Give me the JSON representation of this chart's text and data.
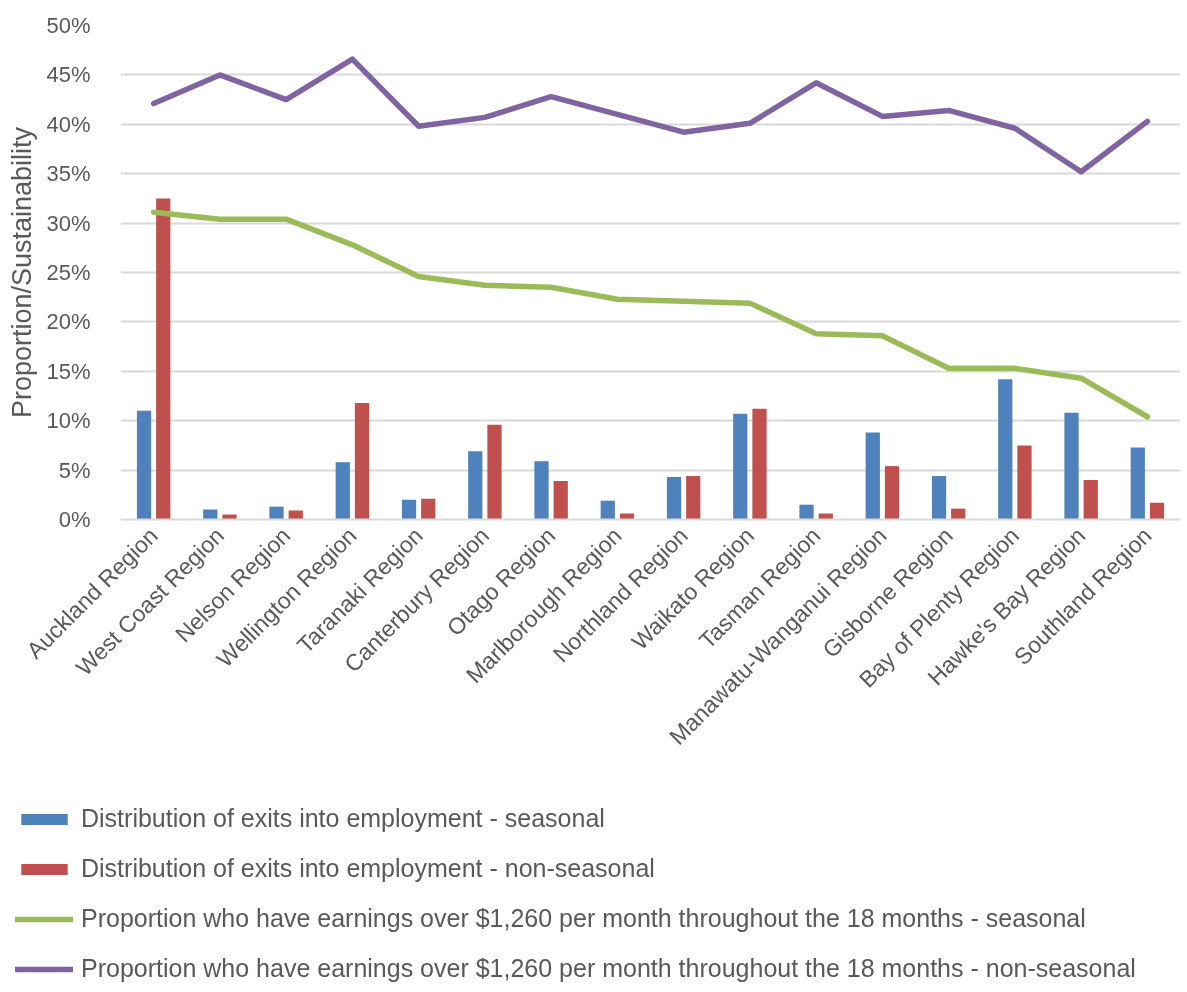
{
  "chart_data": {
    "type": "bar",
    "ylabel": "Proportion/Sustainability",
    "categories": [
      "Auckland Region",
      "West Coast Region",
      "Nelson Region",
      "Wellington Region",
      "Taranaki Region",
      "Canterbury Region",
      "Otago Region",
      "Marlborough Region",
      "Northland Region",
      "Waikato Region",
      "Tasman Region",
      "Manawatu-Wanganui Region",
      "Gisborne Region",
      "Bay of Plenty Region",
      "Hawke's Bay Region",
      "Southland Region"
    ],
    "series": [
      {
        "name": "Distribution of exits into employment - seasonal",
        "color": "#4f81bd",
        "values": [
          11.0,
          1.0,
          1.3,
          5.8,
          2.0,
          6.9,
          5.9,
          1.9,
          4.3,
          10.7,
          1.5,
          8.8,
          4.4,
          14.2,
          10.8,
          7.3
        ]
      },
      {
        "name": "Distribution of exits into employment - non-seasonal",
        "color": "#c0504d",
        "values": [
          32.5,
          0.5,
          0.9,
          11.8,
          2.1,
          9.6,
          3.9,
          0.6,
          4.4,
          11.2,
          0.6,
          5.4,
          1.1,
          7.5,
          4.0,
          1.7
        ]
      },
      {
        "name": "Proportion who have earnings over $1,260 per month throughout the 18 months - seasonal",
        "type": "line",
        "color": "#9bbb59",
        "values": [
          31.1,
          30.4,
          30.4,
          27.8,
          24.6,
          23.7,
          23.5,
          22.3,
          22.1,
          21.9,
          18.8,
          18.6,
          15.3,
          15.3,
          14.3,
          10.4
        ]
      },
      {
        "name": "Proportion who have earnings over $1,260 per month throughout the 18 months - non-seasonal",
        "type": "line",
        "color": "#8064a2",
        "values": [
          42.1,
          45.0,
          42.5,
          46.6,
          39.8,
          40.7,
          42.8,
          41.0,
          39.2,
          40.1,
          44.2,
          40.8,
          41.4,
          39.6,
          35.2,
          40.3
        ]
      }
    ],
    "ylim": [
      0,
      50
    ],
    "yticks": [
      {
        "value": 0,
        "label": "0%"
      },
      {
        "value": 5,
        "label": "5%"
      },
      {
        "value": 10,
        "label": "10%"
      },
      {
        "value": 15,
        "label": "15%"
      },
      {
        "value": 20,
        "label": "20%"
      },
      {
        "value": 25,
        "label": "25%"
      },
      {
        "value": 30,
        "label": "30%"
      },
      {
        "value": 35,
        "label": "35%"
      },
      {
        "value": 40,
        "label": "40%"
      },
      {
        "value": 45,
        "label": "45%"
      },
      {
        "value": 50,
        "label": "50%"
      }
    ],
    "grid": "y",
    "legend": "bottom",
    "marker": "none",
    "line_style": "solid"
  }
}
